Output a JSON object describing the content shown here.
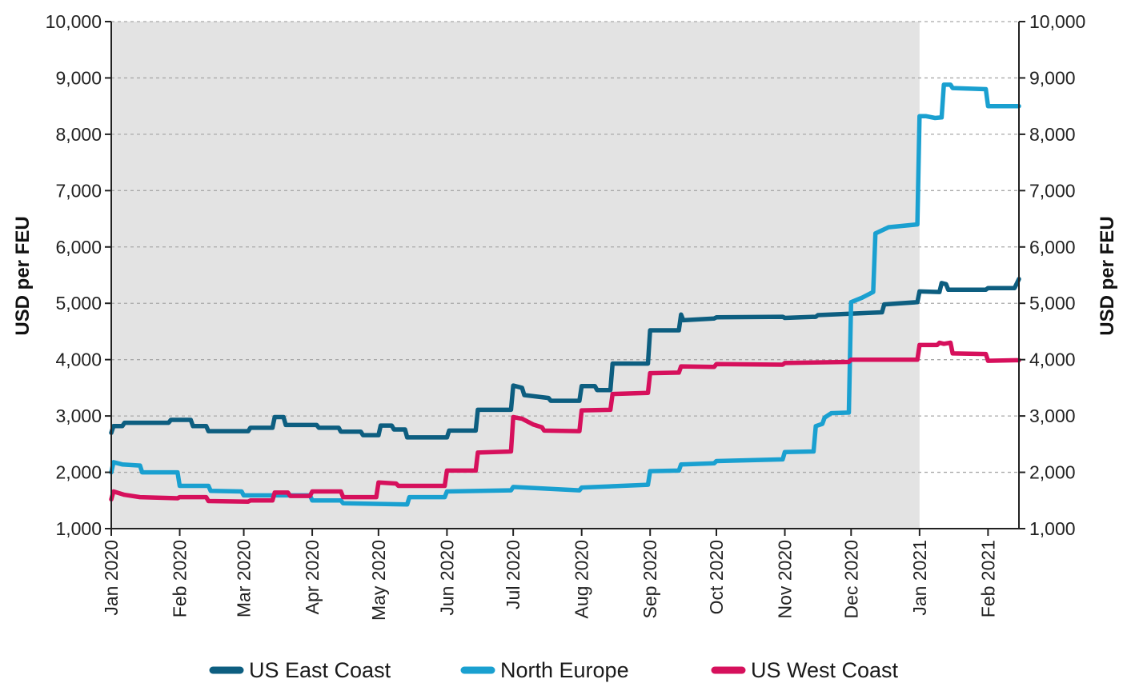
{
  "chart_data": {
    "type": "line",
    "y_axis_label_left": "USD per FEU",
    "y_axis_label_right": "USD per FEU",
    "ylim": [
      1000,
      10000
    ],
    "yticks": [
      1000,
      2000,
      3000,
      4000,
      5000,
      6000,
      7000,
      8000,
      9000,
      10000
    ],
    "ytick_labels": [
      "1,000",
      "2,000",
      "3,000",
      "4,000",
      "5,000",
      "6,000",
      "7,000",
      "8,000",
      "9,000",
      "10,000"
    ],
    "xlim": [
      "2020-01-01",
      "2021-02-15"
    ],
    "xticks": [
      "2020-01-01",
      "2020-02-01",
      "2020-03-01",
      "2020-04-01",
      "2020-05-01",
      "2020-06-01",
      "2020-07-01",
      "2020-08-01",
      "2020-09-01",
      "2020-10-01",
      "2020-11-01",
      "2020-12-01",
      "2021-01-01",
      "2021-02-01"
    ],
    "xtick_labels": [
      "Jan 2020",
      "Feb 2020",
      "Mar 2020",
      "Apr 2020",
      "May 2020",
      "Jun 2020",
      "Jul 2020",
      "Aug 2020",
      "Sep 2020",
      "Oct 2020",
      "Nov 2020",
      "Dec 2020",
      "Jan 2021",
      "Feb 2021"
    ],
    "shaded_range": [
      "2020-01-01",
      "2021-01-01"
    ],
    "grid": "horizontal-dashed",
    "legend_position": "bottom",
    "series": [
      {
        "name": "US East Coast",
        "color": "#0d5e80",
        "points": [
          [
            "2020-01-01",
            2700
          ],
          [
            "2020-01-02",
            2820
          ],
          [
            "2020-01-06",
            2820
          ],
          [
            "2020-01-07",
            2880
          ],
          [
            "2020-01-27",
            2880
          ],
          [
            "2020-01-28",
            2930
          ],
          [
            "2020-02-06",
            2930
          ],
          [
            "2020-02-07",
            2820
          ],
          [
            "2020-02-13",
            2820
          ],
          [
            "2020-02-14",
            2730
          ],
          [
            "2020-03-03",
            2730
          ],
          [
            "2020-03-04",
            2790
          ],
          [
            "2020-03-14",
            2790
          ],
          [
            "2020-03-15",
            2980
          ],
          [
            "2020-03-19",
            2980
          ],
          [
            "2020-03-20",
            2840
          ],
          [
            "2020-04-03",
            2840
          ],
          [
            "2020-04-04",
            2790
          ],
          [
            "2020-04-13",
            2790
          ],
          [
            "2020-04-14",
            2720
          ],
          [
            "2020-04-23",
            2720
          ],
          [
            "2020-04-24",
            2660
          ],
          [
            "2020-05-01",
            2660
          ],
          [
            "2020-05-02",
            2830
          ],
          [
            "2020-05-07",
            2830
          ],
          [
            "2020-05-08",
            2760
          ],
          [
            "2020-05-13",
            2760
          ],
          [
            "2020-05-14",
            2620
          ],
          [
            "2020-06-01",
            2620
          ],
          [
            "2020-06-02",
            2740
          ],
          [
            "2020-06-14",
            2740
          ],
          [
            "2020-06-15",
            3110
          ],
          [
            "2020-06-30",
            3110
          ],
          [
            "2020-07-01",
            3540
          ],
          [
            "2020-07-05",
            3500
          ],
          [
            "2020-07-06",
            3370
          ],
          [
            "2020-07-17",
            3320
          ],
          [
            "2020-07-18",
            3270
          ],
          [
            "2020-07-31",
            3270
          ],
          [
            "2020-08-01",
            3530
          ],
          [
            "2020-08-07",
            3530
          ],
          [
            "2020-08-08",
            3460
          ],
          [
            "2020-08-14",
            3460
          ],
          [
            "2020-08-15",
            3930
          ],
          [
            "2020-08-31",
            3930
          ],
          [
            "2020-09-01",
            4520
          ],
          [
            "2020-09-14",
            4520
          ],
          [
            "2020-09-15",
            4800
          ],
          [
            "2020-09-16",
            4700
          ],
          [
            "2020-09-30",
            4730
          ],
          [
            "2020-10-01",
            4750
          ],
          [
            "2020-10-31",
            4760
          ],
          [
            "2020-11-01",
            4740
          ],
          [
            "2020-11-15",
            4760
          ],
          [
            "2020-11-16",
            4790
          ],
          [
            "2020-12-15",
            4840
          ],
          [
            "2020-12-16",
            4980
          ],
          [
            "2020-12-31",
            5020
          ],
          [
            "2021-01-01",
            5210
          ],
          [
            "2021-01-10",
            5200
          ],
          [
            "2021-01-11",
            5360
          ],
          [
            "2021-01-13",
            5340
          ],
          [
            "2021-01-14",
            5240
          ],
          [
            "2021-01-31",
            5240
          ],
          [
            "2021-02-01",
            5270
          ],
          [
            "2021-02-13",
            5270
          ],
          [
            "2021-02-15",
            5430
          ]
        ]
      },
      {
        "name": "North Europe",
        "color": "#1aa0d0",
        "points": [
          [
            "2020-01-01",
            2000
          ],
          [
            "2020-01-02",
            2180
          ],
          [
            "2020-01-06",
            2140
          ],
          [
            "2020-01-14",
            2120
          ],
          [
            "2020-01-15",
            2000
          ],
          [
            "2020-01-31",
            2000
          ],
          [
            "2020-02-01",
            1760
          ],
          [
            "2020-02-14",
            1760
          ],
          [
            "2020-02-15",
            1670
          ],
          [
            "2020-02-29",
            1660
          ],
          [
            "2020-03-01",
            1590
          ],
          [
            "2020-03-31",
            1590
          ],
          [
            "2020-04-01",
            1500
          ],
          [
            "2020-04-14",
            1500
          ],
          [
            "2020-04-15",
            1450
          ],
          [
            "2020-05-14",
            1430
          ],
          [
            "2020-05-15",
            1560
          ],
          [
            "2020-05-31",
            1560
          ],
          [
            "2020-06-01",
            1660
          ],
          [
            "2020-06-30",
            1680
          ],
          [
            "2020-07-01",
            1740
          ],
          [
            "2020-07-31",
            1680
          ],
          [
            "2020-08-01",
            1730
          ],
          [
            "2020-08-31",
            1780
          ],
          [
            "2020-09-01",
            2020
          ],
          [
            "2020-09-14",
            2030
          ],
          [
            "2020-09-15",
            2140
          ],
          [
            "2020-09-30",
            2160
          ],
          [
            "2020-10-01",
            2200
          ],
          [
            "2020-10-31",
            2230
          ],
          [
            "2020-11-01",
            2360
          ],
          [
            "2020-11-14",
            2370
          ],
          [
            "2020-11-15",
            2820
          ],
          [
            "2020-11-18",
            2860
          ],
          [
            "2020-11-19",
            2970
          ],
          [
            "2020-11-22",
            3050
          ],
          [
            "2020-11-30",
            3060
          ],
          [
            "2020-12-01",
            5020
          ],
          [
            "2020-12-06",
            5100
          ],
          [
            "2020-12-11",
            5200
          ],
          [
            "2020-12-12",
            6240
          ],
          [
            "2020-12-18",
            6350
          ],
          [
            "2020-12-31",
            6400
          ],
          [
            "2021-01-01",
            8320
          ],
          [
            "2021-01-04",
            8320
          ],
          [
            "2021-01-08",
            8290
          ],
          [
            "2021-01-11",
            8300
          ],
          [
            "2021-01-12",
            8880
          ],
          [
            "2021-01-15",
            8880
          ],
          [
            "2021-01-16",
            8820
          ],
          [
            "2021-01-31",
            8800
          ],
          [
            "2021-02-01",
            8500
          ],
          [
            "2021-02-15",
            8500
          ]
        ]
      },
      {
        "name": "US West Coast",
        "color": "#d6105c",
        "points": [
          [
            "2020-01-01",
            1520
          ],
          [
            "2020-01-02",
            1660
          ],
          [
            "2020-01-07",
            1600
          ],
          [
            "2020-01-14",
            1560
          ],
          [
            "2020-01-31",
            1540
          ],
          [
            "2020-02-01",
            1560
          ],
          [
            "2020-02-13",
            1560
          ],
          [
            "2020-02-14",
            1490
          ],
          [
            "2020-03-03",
            1480
          ],
          [
            "2020-03-04",
            1500
          ],
          [
            "2020-03-14",
            1500
          ],
          [
            "2020-03-15",
            1640
          ],
          [
            "2020-03-21",
            1640
          ],
          [
            "2020-03-22",
            1580
          ],
          [
            "2020-03-31",
            1580
          ],
          [
            "2020-04-01",
            1660
          ],
          [
            "2020-04-14",
            1660
          ],
          [
            "2020-04-15",
            1560
          ],
          [
            "2020-04-30",
            1560
          ],
          [
            "2020-05-01",
            1820
          ],
          [
            "2020-05-09",
            1800
          ],
          [
            "2020-05-10",
            1760
          ],
          [
            "2020-05-31",
            1760
          ],
          [
            "2020-06-01",
            2030
          ],
          [
            "2020-06-14",
            2030
          ],
          [
            "2020-06-15",
            2350
          ],
          [
            "2020-06-30",
            2370
          ],
          [
            "2020-07-01",
            2980
          ],
          [
            "2020-07-05",
            2950
          ],
          [
            "2020-07-10",
            2850
          ],
          [
            "2020-07-14",
            2800
          ],
          [
            "2020-07-15",
            2740
          ],
          [
            "2020-07-31",
            2730
          ],
          [
            "2020-08-01",
            3100
          ],
          [
            "2020-08-14",
            3110
          ],
          [
            "2020-08-15",
            3390
          ],
          [
            "2020-08-31",
            3410
          ],
          [
            "2020-09-01",
            3760
          ],
          [
            "2020-09-14",
            3770
          ],
          [
            "2020-09-15",
            3880
          ],
          [
            "2020-09-30",
            3870
          ],
          [
            "2020-10-01",
            3920
          ],
          [
            "2020-10-31",
            3910
          ],
          [
            "2020-11-01",
            3940
          ],
          [
            "2020-11-30",
            3960
          ],
          [
            "2020-12-01",
            4000
          ],
          [
            "2020-12-31",
            4000
          ],
          [
            "2021-01-01",
            4260
          ],
          [
            "2021-01-09",
            4260
          ],
          [
            "2021-01-10",
            4300
          ],
          [
            "2021-01-12",
            4280
          ],
          [
            "2021-01-15",
            4300
          ],
          [
            "2021-01-16",
            4110
          ],
          [
            "2021-01-31",
            4100
          ],
          [
            "2021-02-01",
            3980
          ],
          [
            "2021-02-15",
            3990
          ]
        ]
      }
    ]
  }
}
